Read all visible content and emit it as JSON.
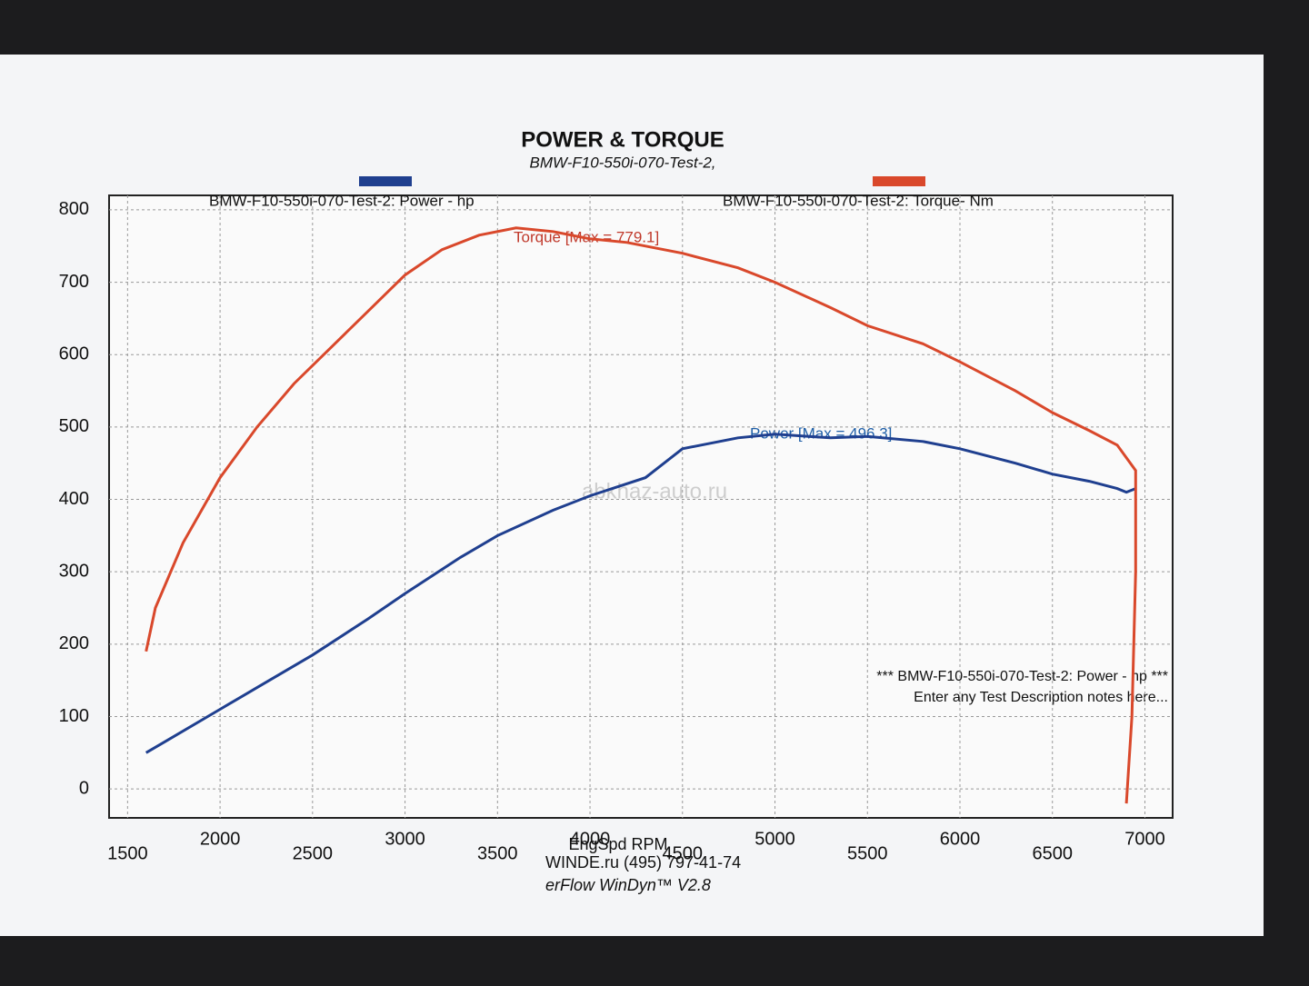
{
  "chart_data": {
    "type": "line",
    "title": "POWER & TORQUE",
    "subtitle": "BMW-F10-550i-070-Test-2,",
    "x_label": "EngSpd  RPM",
    "xlim": [
      1400,
      7150
    ],
    "xticks": [
      1500,
      2000,
      2500,
      3000,
      3500,
      4000,
      4500,
      5000,
      5500,
      6000,
      6500,
      7000
    ],
    "ylim": [
      -40,
      820
    ],
    "yticks": [
      0,
      100,
      200,
      300,
      400,
      500,
      600,
      700,
      800
    ],
    "grid": true,
    "series": [
      {
        "name": "BMW-F10-550i-070-Test-2: Power -  hp",
        "color": "#1f3f8f",
        "x": [
          1600,
          1700,
          2000,
          2200,
          2500,
          2800,
          3000,
          3300,
          3500,
          3800,
          4000,
          4300,
          4500,
          4800,
          5000,
          5300,
          5500,
          5800,
          6000,
          6300,
          6500,
          6700,
          6850,
          6900,
          6950
        ],
        "values": [
          50,
          65,
          110,
          140,
          185,
          235,
          270,
          320,
          350,
          385,
          405,
          430,
          470,
          485,
          490,
          485,
          487,
          480,
          470,
          450,
          435,
          425,
          415,
          410,
          415
        ]
      },
      {
        "name": "BMW-F10-550i-070-Test-2: Torque-  Nm",
        "color": "#d9482b",
        "x": [
          1600,
          1650,
          1800,
          2000,
          2200,
          2400,
          2600,
          2800,
          3000,
          3200,
          3400,
          3600,
          3800,
          4000,
          4200,
          4500,
          4800,
          5000,
          5300,
          5500,
          5800,
          6000,
          6300,
          6500,
          6700,
          6850,
          6950,
          6950,
          6930,
          6900
        ],
        "values": [
          190,
          250,
          340,
          430,
          500,
          560,
          610,
          660,
          710,
          745,
          765,
          775,
          770,
          760,
          755,
          740,
          720,
          700,
          665,
          640,
          615,
          590,
          550,
          520,
          495,
          475,
          440,
          300,
          100,
          -20
        ]
      }
    ],
    "annotations": [
      "Torque [Max = 779.1]",
      "Power  [Max = 496.3]",
      "*** BMW-F10-550i-070-Test-2: Power -  hp  ***",
      "Enter any Test Description notes here..."
    ],
    "watermark": "abkhaz-auto.ru",
    "footer": [
      "WINDE.ru  (495) 797-41-74",
      "erFlow WinDyn™ V2.8"
    ]
  }
}
